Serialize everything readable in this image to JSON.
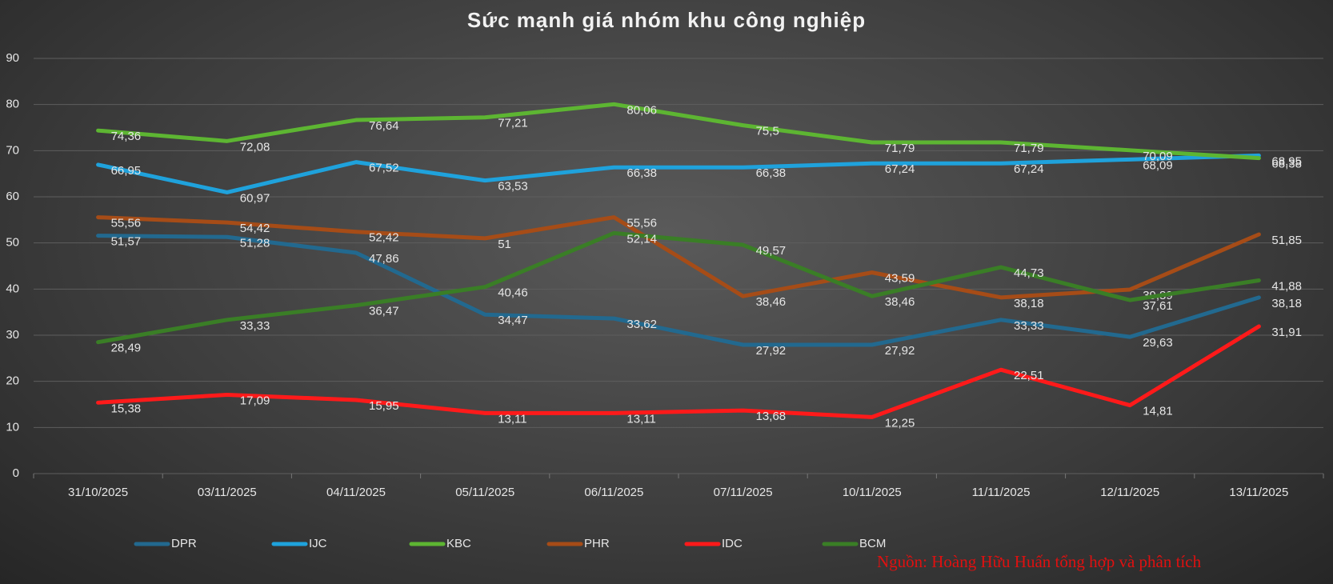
{
  "chart_data": {
    "type": "line",
    "title": "Sức mạnh giá nhóm khu công nghiệp",
    "source": "Nguồn: Hoàng Hữu Huấn tổng hợp và phân tích",
    "categories": [
      "31/10/2025",
      "03/11/2025",
      "04/11/2025",
      "05/11/2025",
      "06/11/2025",
      "07/11/2025",
      "10/11/2025",
      "11/11/2025",
      "12/11/2025",
      "13/11/2025"
    ],
    "ylim": [
      0,
      90
    ],
    "yticks": [
      0,
      10,
      20,
      30,
      40,
      50,
      60,
      70,
      80,
      90
    ],
    "grid": true,
    "legend": "bottom",
    "series": [
      {
        "name": "DPR",
        "color": "#22698f",
        "values": [
          51.57,
          51.28,
          47.86,
          34.47,
          33.62,
          27.92,
          27.92,
          33.33,
          29.63,
          38.18
        ],
        "value_labels": [
          "51,57",
          "51,28",
          "47,86",
          "34,47",
          "33,62",
          "27,92",
          "27,92",
          "33,33",
          "29,63",
          "38,18"
        ]
      },
      {
        "name": "IJC",
        "color": "#1fa2dc",
        "values": [
          66.95,
          60.97,
          67.52,
          63.53,
          66.38,
          66.38,
          67.24,
          67.24,
          68.09,
          68.95
        ],
        "value_labels": [
          "66,95",
          "60,97",
          "67,52",
          "63,53",
          "66,38",
          "66,38",
          "67,24",
          "67,24",
          "68,09",
          "68,95"
        ]
      },
      {
        "name": "KBC",
        "color": "#5db532",
        "values": [
          74.36,
          72.08,
          76.64,
          77.21,
          80.06,
          75.5,
          71.79,
          71.79,
          70.09,
          68.38
        ],
        "value_labels": [
          "74,36",
          "72,08",
          "76,64",
          "77,21",
          "80,06",
          "75,5",
          "71,79",
          "71,79",
          "70,09",
          "68,38"
        ]
      },
      {
        "name": "PHR",
        "color": "#a64c17",
        "values": [
          55.56,
          54.42,
          52.42,
          51,
          55.56,
          38.46,
          43.59,
          38.18,
          39.89,
          51.85
        ],
        "value_labels": [
          "55,56",
          "54,42",
          "52,42",
          "51",
          "55,56",
          "38,46",
          "43,59",
          "38,18",
          "39,89",
          "51,85"
        ]
      },
      {
        "name": "IDC",
        "color": "#ff1a1a",
        "values": [
          15.38,
          17.09,
          15.95,
          13.11,
          13.11,
          13.68,
          12.25,
          22.51,
          14.81,
          31.91
        ],
        "value_labels": [
          "15,38",
          "17,09",
          "15,95",
          "13,11",
          "13,11",
          "13,68",
          "12,25",
          "22,51",
          "14,81",
          "31,91"
        ]
      },
      {
        "name": "BCM",
        "color": "#3a7e26",
        "values": [
          28.49,
          33.33,
          36.47,
          40.46,
          52.14,
          49.57,
          38.46,
          44.73,
          37.61,
          41.88
        ],
        "value_labels": [
          "28,49",
          "33,33",
          "36,47",
          "40,46",
          "52,14",
          "49,57",
          "38,46",
          "44,73",
          "37,61",
          "41,88"
        ]
      }
    ]
  }
}
